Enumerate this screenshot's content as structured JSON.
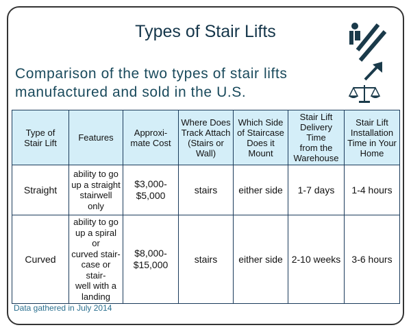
{
  "header": {
    "title": "Types of Stair Lifts",
    "subtitle": "Comparison of the two types of stair lifts\nmanufactured and sold in the U.S."
  },
  "table": {
    "header": [
      "Type of\nStair Lift",
      "Features",
      "Approxi-\nmate Cost",
      "Where Does\nTrack Attach\n(Stairs or Wall)",
      "Which Side\nof Staircase\nDoes it Mount",
      "Stair Lift\nDelivery Time\nfrom the\nWarehouse",
      "Stair Lift\nInstallation\nTime in Your\nHome"
    ],
    "rows": [
      [
        "Straight",
        "ability to go\nup a straight\nstairwell only",
        "$3,000-\n$5,000",
        "stairs",
        "either side",
        "1-7 days",
        "1-4 hours"
      ],
      [
        "Curved",
        "ability to go\nup a spiral or\ncurved stair-\ncase or stair-\nwell with a\nlanding",
        "$8,000-\n$15,000",
        "stairs",
        "either side",
        "2-10 weeks",
        "3-6 hours"
      ]
    ]
  },
  "footnote": "Data gathered in July 2014"
}
